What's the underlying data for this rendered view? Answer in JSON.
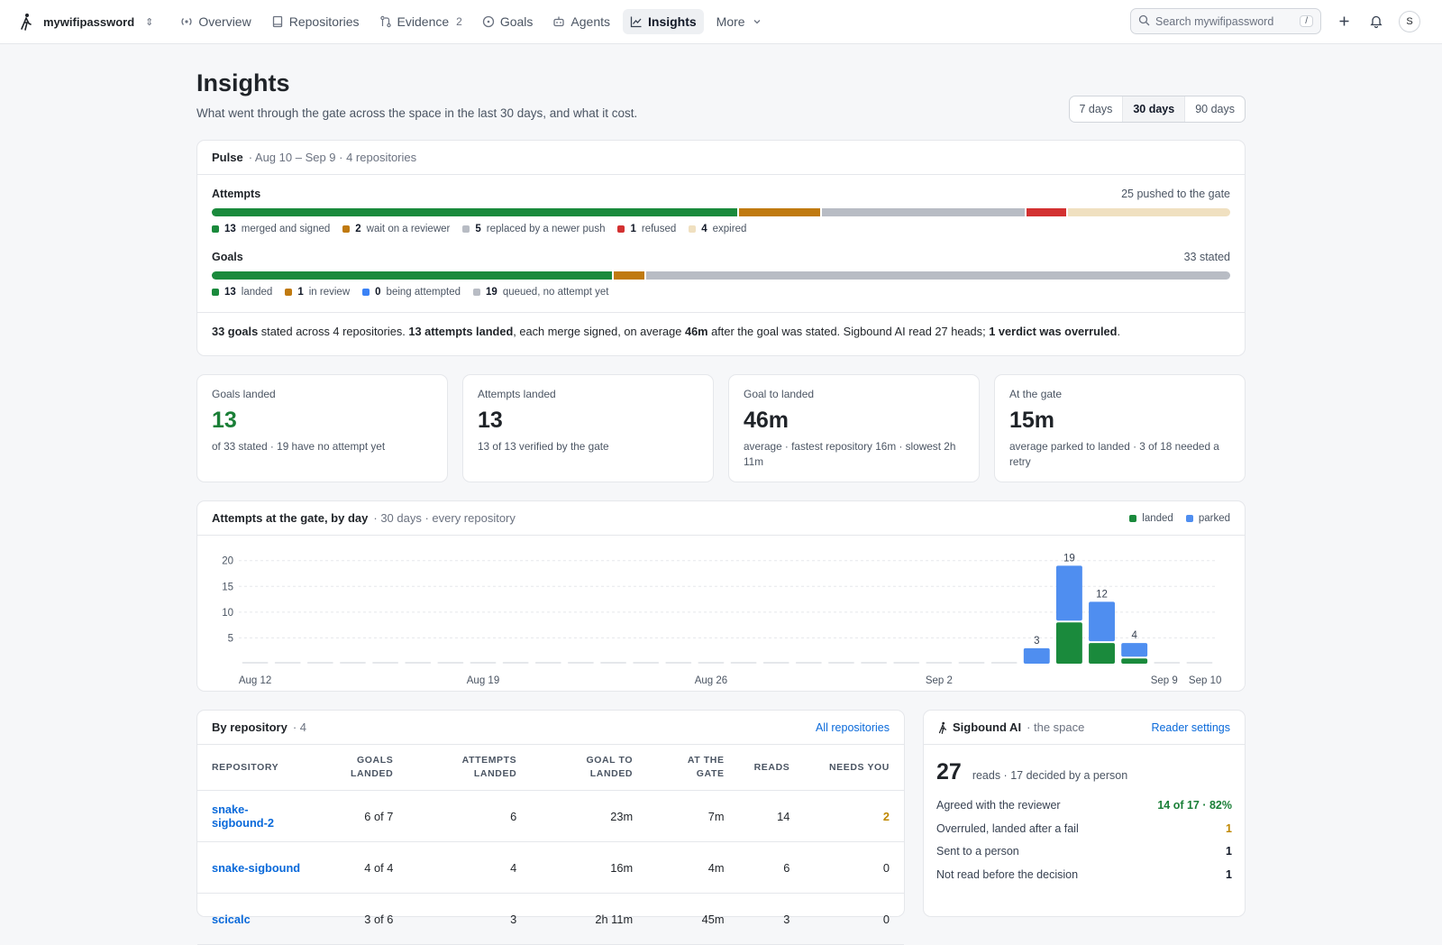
{
  "nav": {
    "workspace": "mywifipassword",
    "items": [
      {
        "label": "Overview",
        "icon": "broadcast-icon"
      },
      {
        "label": "Repositories",
        "icon": "book-icon"
      },
      {
        "label": "Evidence",
        "icon": "git-compare-icon",
        "count": "2"
      },
      {
        "label": "Goals",
        "icon": "target-icon"
      },
      {
        "label": "Agents",
        "icon": "robot-icon"
      },
      {
        "label": "Insights",
        "icon": "graph-icon",
        "active": true
      },
      {
        "label": "More",
        "icon": "chevron-down-icon"
      }
    ],
    "search_placeholder": "Search mywifipassword",
    "search_kbd": "/",
    "avatar": "S"
  },
  "header": {
    "title": "Insights",
    "subtitle": "What went through the gate across the space in the last 30 days, and what it cost.",
    "ranges": [
      "7 days",
      "30 days",
      "90 days"
    ],
    "selected_range": "30 days"
  },
  "pulse": {
    "title": "Pulse",
    "meta": "· Aug 10 – Sep 9 · 4 repositories",
    "attempts": {
      "label": "Attempts",
      "right": "25 pushed to the gate",
      "segments": [
        {
          "value": 13,
          "text": "merged and signed",
          "color": "#1a8a3c"
        },
        {
          "value": 2,
          "text": "wait on a reviewer",
          "color": "#c07a10"
        },
        {
          "value": 5,
          "text": "replaced by a newer push",
          "color": "#b8bcc4"
        },
        {
          "value": 1,
          "text": "refused",
          "color": "#d33131"
        },
        {
          "value": 4,
          "text": "expired",
          "color": "#f0e0c0"
        }
      ]
    },
    "goals": {
      "label": "Goals",
      "right": "33 stated",
      "segments": [
        {
          "value": 13,
          "text": "landed",
          "color": "#1a8a3c"
        },
        {
          "value": 1,
          "text": "in review",
          "color": "#c07a10"
        },
        {
          "value": 0,
          "text": "being attempted",
          "color": "#3b82f6"
        },
        {
          "value": 19,
          "text": "queued, no attempt yet",
          "color": "#b8bcc4"
        }
      ]
    },
    "summary": {
      "p1": "33 goals",
      "p2": " stated across 4 repositories. ",
      "p3": "13 attempts landed",
      "p4": ", each merge signed, on average ",
      "p5": "46m",
      "p6": " after the goal was stated. Sigbound AI read 27 heads; ",
      "p7": "1 verdict was overruled",
      "p8": "."
    }
  },
  "stats": [
    {
      "label": "Goals landed",
      "value": "13",
      "detail": "of 33 stated · 19 have no attempt yet",
      "green": true
    },
    {
      "label": "Attempts landed",
      "value": "13",
      "detail": "13 of 13 verified by the gate"
    },
    {
      "label": "Goal to landed",
      "value": "46m",
      "detail": "average · fastest repository 16m · slowest 2h 11m"
    },
    {
      "label": "At the gate",
      "value": "15m",
      "detail": "average parked to landed · 3 of 18 needed a retry"
    }
  ],
  "chart_card": {
    "title": "Attempts at the gate, by day",
    "meta": "· 30 days · every repository",
    "legend": [
      {
        "label": "landed",
        "color": "#1a8a3c"
      },
      {
        "label": "parked",
        "color": "#4f8ef0"
      }
    ]
  },
  "chart_data": {
    "type": "bar",
    "stacked": true,
    "categories": [
      "Aug 12",
      "Aug 13",
      "Aug 14",
      "Aug 15",
      "Aug 16",
      "Aug 17",
      "Aug 18",
      "Aug 19",
      "Aug 20",
      "Aug 21",
      "Aug 22",
      "Aug 23",
      "Aug 24",
      "Aug 25",
      "Aug 26",
      "Aug 27",
      "Aug 28",
      "Aug 29",
      "Aug 30",
      "Aug 31",
      "Sep 1",
      "Sep 2",
      "Sep 3",
      "Sep 4",
      "Sep 5",
      "Sep 6",
      "Sep 7",
      "Sep 8",
      "Sep 9",
      "Sep 10"
    ],
    "series": [
      {
        "name": "landed",
        "values": [
          0,
          0,
          0,
          0,
          0,
          0,
          0,
          0,
          0,
          0,
          0,
          0,
          0,
          0,
          0,
          0,
          0,
          0,
          0,
          0,
          0,
          0,
          0,
          0,
          0,
          8,
          4,
          1,
          0,
          0
        ]
      },
      {
        "name": "parked",
        "values": [
          0,
          0,
          0,
          0,
          0,
          0,
          0,
          0,
          0,
          0,
          0,
          0,
          0,
          0,
          0,
          0,
          0,
          0,
          0,
          0,
          0,
          0,
          0,
          0,
          3,
          11,
          8,
          3,
          0,
          0
        ]
      }
    ],
    "totals_labels": [
      "",
      "",
      "",
      "",
      "",
      "",
      "",
      "",
      "",
      "",
      "",
      "",
      "",
      "",
      "",
      "",
      "",
      "",
      "",
      "",
      "",
      "",
      "",
      "",
      "3",
      "19",
      "12",
      "4",
      "",
      ""
    ],
    "x_tick_labels": [
      "Aug 12",
      "Aug 19",
      "Aug 26",
      "Sep 2",
      "Sep 9",
      "Sep 10"
    ],
    "y_ticks": [
      5,
      10,
      15,
      20
    ],
    "ylim": [
      0,
      21
    ],
    "grid": true
  },
  "repos": {
    "title": "By repository",
    "count": "· 4",
    "link": "All repositories",
    "columns": [
      "Repository",
      "Goals landed",
      "Attempts landed",
      "Goal to landed",
      "At the gate",
      "Reads",
      "Needs you"
    ],
    "rows": [
      [
        "snake-sigbound-2",
        "6 of 7",
        "6",
        "23m",
        "7m",
        "14",
        "2"
      ],
      [
        "snake-sigbound",
        "4 of 4",
        "4",
        "16m",
        "4m",
        "6",
        "0"
      ],
      [
        "scicalc",
        "3 of 6",
        "3",
        "2h 11m",
        "45m",
        "3",
        "0"
      ]
    ]
  },
  "ai": {
    "title": "Sigbound AI",
    "meta": "· the space",
    "link": "Reader settings",
    "big": "27",
    "big_text": "reads · 17 decided by a person",
    "rows": [
      {
        "label": "Agreed with the reviewer",
        "value": "14 of 17 · 82%",
        "tone": "green"
      },
      {
        "label": "Overruled, landed after a fail",
        "value": "1",
        "tone": "amber"
      },
      {
        "label": "Sent to a person",
        "value": "1",
        "tone": ""
      },
      {
        "label": "Not read before the decision",
        "value": "1",
        "tone": ""
      }
    ]
  }
}
